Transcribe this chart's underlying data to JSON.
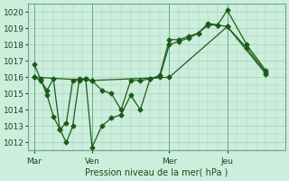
{
  "background_color": "#cceedd",
  "plot_bg_color": "#cceedd",
  "grid_color": "#aaccbb",
  "line_color": "#1a5c1a",
  "title": "",
  "xlabel": "Pression niveau de la mer( hPa )",
  "ylim": [
    1011.5,
    1020.5
  ],
  "yticks": [
    1012,
    1013,
    1014,
    1015,
    1016,
    1017,
    1018,
    1019,
    1020
  ],
  "xtick_labels": [
    "Mar",
    "Ven",
    "Mer",
    "Jeu"
  ],
  "xtick_pos": [
    0,
    3,
    7,
    10
  ],
  "vline_pos": [
    0,
    3,
    7,
    10
  ],
  "xlim": [
    -0.3,
    13.0
  ],
  "series1_x": [
    0,
    0.33,
    0.67,
    1.0,
    1.33,
    1.67,
    2.0,
    2.33,
    2.67,
    3.0,
    3.5,
    4.0,
    4.5,
    5.0,
    5.5,
    6.0,
    6.5,
    7.0,
    7.5,
    8.0,
    8.5,
    9.0,
    9.5,
    10.0,
    11.0,
    12.0
  ],
  "series1_y": [
    1016.8,
    1015.9,
    1014.9,
    1013.6,
    1012.8,
    1012.0,
    1013.0,
    1015.8,
    1015.9,
    1011.7,
    1013.0,
    1013.5,
    1013.7,
    1014.9,
    1014.0,
    1015.9,
    1016.1,
    1018.3,
    1018.3,
    1018.5,
    1018.7,
    1019.3,
    1019.2,
    1020.1,
    1018.0,
    1016.4
  ],
  "series2_x": [
    0,
    3,
    7,
    10,
    12
  ],
  "series2_y": [
    1016.0,
    1015.8,
    1016.0,
    1019.1,
    1016.2
  ],
  "series3_x": [
    0,
    0.33,
    0.67,
    1.0,
    1.33,
    1.67,
    2.0,
    2.33,
    2.67,
    3.0,
    3.5,
    4.0,
    4.5,
    5.0,
    5.5,
    6.0,
    6.5,
    7.0,
    7.5,
    8.0,
    8.5,
    9.0,
    9.5,
    10.0,
    11.0,
    12.0
  ],
  "series3_y": [
    1016.0,
    1015.8,
    1015.2,
    1015.9,
    1012.8,
    1013.2,
    1015.8,
    1015.9,
    1015.9,
    1015.8,
    1015.2,
    1015.0,
    1014.0,
    1015.8,
    1015.8,
    1015.9,
    1016.0,
    1018.0,
    1018.2,
    1018.4,
    1018.7,
    1019.2,
    1019.2,
    1019.1,
    1017.8,
    1016.3
  ]
}
